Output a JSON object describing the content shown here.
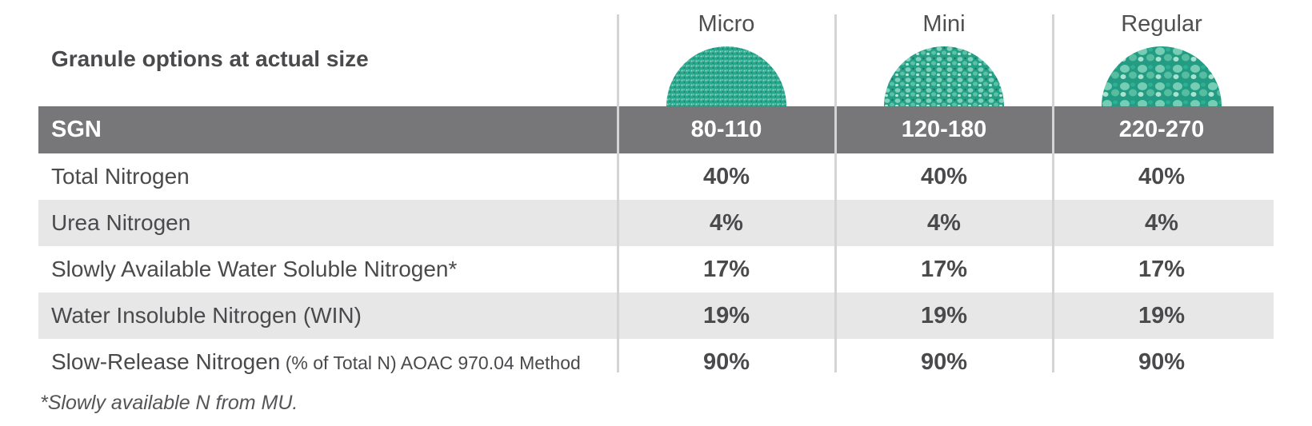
{
  "header": {
    "title": "Granule options at actual size",
    "columns": [
      "Micro",
      "Mini",
      "Regular"
    ]
  },
  "sgn": {
    "label": "SGN",
    "values": [
      "80-110",
      "120-180",
      "220-270"
    ]
  },
  "rows": [
    {
      "label": "Total Nitrogen",
      "label_note": "",
      "values": [
        "40%",
        "40%",
        "40%"
      ]
    },
    {
      "label": "Urea Nitrogen",
      "label_note": "",
      "values": [
        "4%",
        "4%",
        "4%"
      ]
    },
    {
      "label": "Slowly Available Water Soluble Nitrogen*",
      "label_note": "",
      "values": [
        "17%",
        "17%",
        "17%"
      ]
    },
    {
      "label": "Water Insoluble Nitrogen (WIN)",
      "label_note": "",
      "values": [
        "19%",
        "19%",
        "19%"
      ]
    },
    {
      "label": "Slow-Release Nitrogen",
      "label_note": " (% of Total N) AOAC 970.04 Method",
      "values": [
        "90%",
        "90%",
        "90%"
      ]
    }
  ],
  "footnote": "*Slowly available N from MU.",
  "colors": {
    "sgn_bar": "#77777a",
    "shaded_row": "#e7e7e8",
    "granule_base": "#2aa88e",
    "text": "#4a4a4d"
  }
}
